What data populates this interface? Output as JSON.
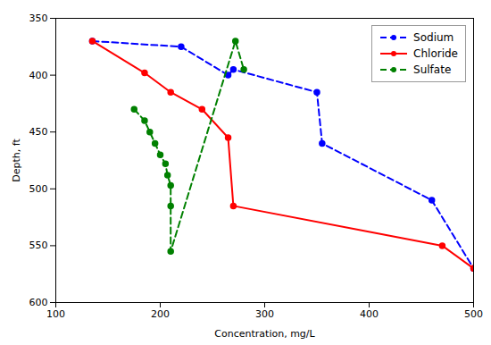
{
  "chart_data": {
    "type": "line",
    "xlabel": "Concentration, mg/L",
    "ylabel": "Depth, ft",
    "xlim": [
      100,
      500
    ],
    "ylim": [
      600,
      350
    ],
    "xticks": [
      100,
      200,
      300,
      400,
      500
    ],
    "yticks": [
      350,
      400,
      450,
      500,
      550,
      600
    ],
    "grid": false,
    "legend": "upper right",
    "series": [
      {
        "name": "Sodium",
        "color": "#0000FF",
        "line_style": "dashed",
        "marker": "circle",
        "x": [
          135,
          220,
          265,
          270,
          350,
          355,
          460,
          500
        ],
        "values": [
          370,
          375,
          400,
          395,
          415,
          460,
          510,
          570
        ]
      },
      {
        "name": "Chloride",
        "color": "#FF0000",
        "line_style": "solid",
        "marker": "circle",
        "x": [
          135,
          185,
          210,
          240,
          265,
          270,
          470,
          500
        ],
        "values": [
          370,
          398,
          415,
          430,
          455,
          515,
          550,
          570
        ]
      },
      {
        "name": "Sulfate",
        "color": "#008000",
        "line_style": "dashed",
        "marker": "circle",
        "x": [
          175,
          185,
          190,
          195,
          200,
          205,
          207,
          210,
          210,
          210,
          272,
          280
        ],
        "values": [
          430,
          440,
          450,
          460,
          470,
          478,
          488,
          497,
          515,
          555,
          370,
          395
        ]
      }
    ]
  }
}
